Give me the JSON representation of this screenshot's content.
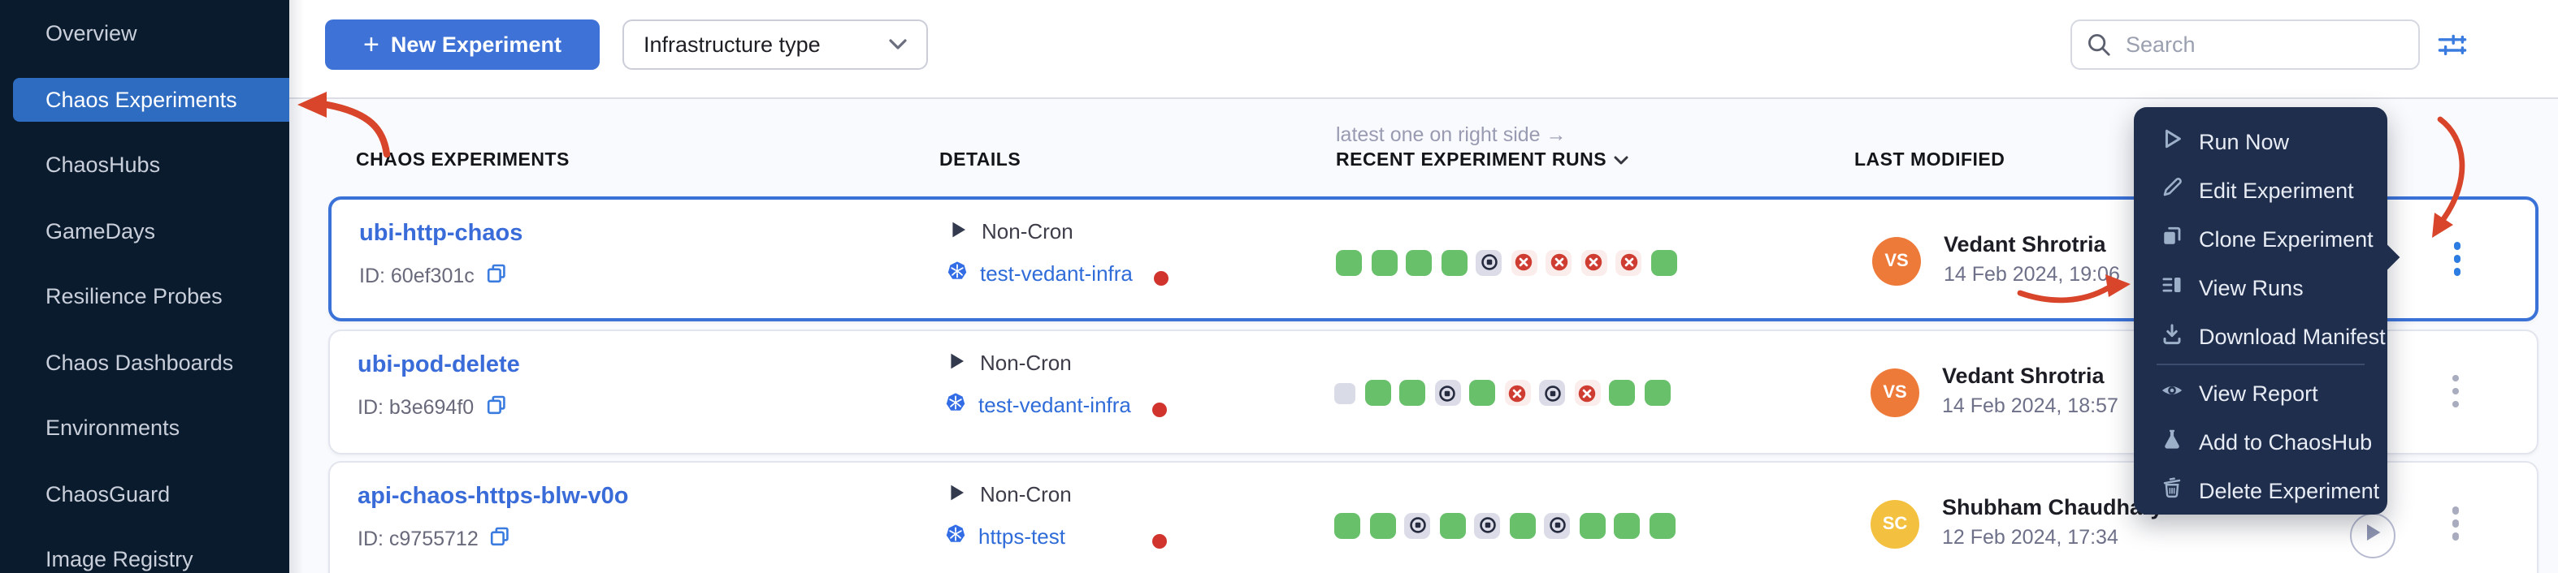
{
  "sidebar": {
    "items": [
      {
        "label": "Overview",
        "selected": false
      },
      {
        "label": "Chaos Experiments",
        "selected": true
      },
      {
        "label": "ChaosHubs",
        "selected": false
      },
      {
        "label": "GameDays",
        "selected": false
      },
      {
        "label": "Resilience Probes",
        "selected": false
      },
      {
        "label": "Chaos Dashboards",
        "selected": false
      },
      {
        "label": "Environments",
        "selected": false
      },
      {
        "label": "ChaosGuard",
        "selected": false
      },
      {
        "label": "Image Registry",
        "selected": false
      }
    ]
  },
  "toolbar": {
    "plus_glyph": "+",
    "new_experiment_label": "New Experiment",
    "infra_filter_label": "Infrastructure type",
    "search_placeholder": "Search"
  },
  "table": {
    "note": "latest one on right side →",
    "headers": [
      "CHAOS EXPERIMENTS",
      "DETAILS",
      "RECENT EXPERIMENT RUNS",
      "LAST MODIFIED"
    ],
    "rows": [
      {
        "name": "ubi-http-chaos",
        "id": "ID: 60ef301c",
        "schedule": "Non-Cron",
        "infra": "test-vedant-infra",
        "infra_status_color": "#d0342c",
        "runs": [
          "success",
          "success",
          "success",
          "success",
          "stopped",
          "failed",
          "failed",
          "failed",
          "failed",
          "success"
        ],
        "modified_by": "Vedant Shrotria",
        "avatar_initials": "VS",
        "avatar_color": "#ee7a3a",
        "modified_date": "14 Feb 2024, 19:06",
        "selected": true,
        "play_button": false
      },
      {
        "name": "ubi-pod-delete",
        "id": "ID: b3e694f0",
        "schedule": "Non-Cron",
        "infra": "test-vedant-infra",
        "infra_status_color": "#d0342c",
        "runs": [
          "empty",
          "success",
          "success",
          "stopped",
          "success",
          "failed",
          "stopped",
          "failed",
          "success",
          "success"
        ],
        "modified_by": "Vedant Shrotria",
        "avatar_initials": "VS",
        "avatar_color": "#ee7a3a",
        "modified_date": "14 Feb 2024, 18:57",
        "selected": false,
        "play_button": false
      },
      {
        "name": "api-chaos-https-blw-v0o",
        "id": "ID: c9755712",
        "schedule": "Non-Cron",
        "infra": "https-test",
        "infra_status_color": "#d0342c",
        "runs": [
          "success",
          "success",
          "stopped",
          "success",
          "stopped",
          "success",
          "stopped",
          "success",
          "success",
          "success"
        ],
        "modified_by": "Shubham Chaudhary",
        "avatar_initials": "SC",
        "avatar_color": "#f3c13f",
        "modified_date": "12 Feb 2024, 17:34",
        "selected": false,
        "play_button": true
      }
    ]
  },
  "context_menu": {
    "items": [
      {
        "icon": "play-icon",
        "label": "Run Now"
      },
      {
        "icon": "pencil-icon",
        "label": "Edit Experiment"
      },
      {
        "icon": "copy-icon",
        "label": "Clone Experiment"
      },
      {
        "icon": "list-icon",
        "label": "View Runs"
      },
      {
        "icon": "download-icon",
        "label": "Download Manifest"
      },
      {
        "divider": true
      },
      {
        "icon": "eye-icon",
        "label": "View Report"
      },
      {
        "icon": "flask-icon",
        "label": "Add to ChaosHub"
      },
      {
        "icon": "trash-icon",
        "label": "Delete Experiment"
      }
    ]
  },
  "colors": {
    "primary_blue": "#3f72d6",
    "link_blue": "#3a6cd9",
    "selected_nav_blue": "#2e6cc2",
    "success_green": "#69c06a",
    "fail_red": "#cf3c31",
    "status_dot_red": "#d0342c",
    "annotation_red": "#d8452b",
    "sidebar_bg": "#0b1b2e",
    "menu_bg": "#1f2e4d"
  }
}
